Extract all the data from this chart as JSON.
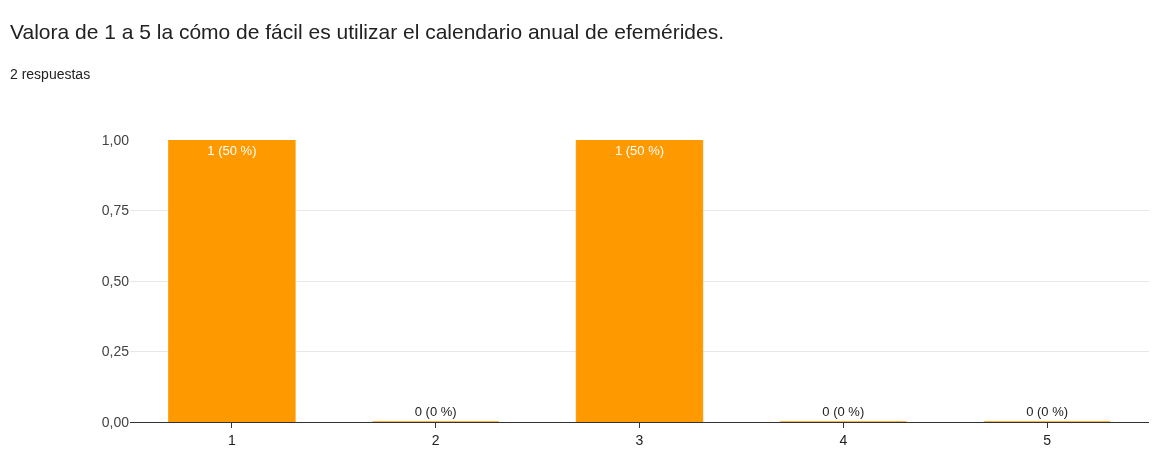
{
  "chart_data": {
    "type": "bar",
    "title": "Valora de 1 a 5 la cómo de fácil es utilizar el calendario anual de efemérides.",
    "subtitle": "2 respuestas",
    "categories": [
      "1",
      "2",
      "3",
      "4",
      "5"
    ],
    "values": [
      1,
      0,
      1,
      0,
      0
    ],
    "value_labels": [
      "1 (50 %)",
      "0 (0 %)",
      "1 (50 %)",
      "0 (0 %)",
      "0 (0 %)"
    ],
    "color": "#ff9900",
    "ylim": [
      0,
      1
    ],
    "yticks": [
      {
        "value": 0,
        "label": "0,00"
      },
      {
        "value": 0.25,
        "label": "0,25"
      },
      {
        "value": 0.5,
        "label": "0,50"
      },
      {
        "value": 0.75,
        "label": "0,75"
      },
      {
        "value": 1,
        "label": "1,00"
      }
    ],
    "grid": "y"
  }
}
